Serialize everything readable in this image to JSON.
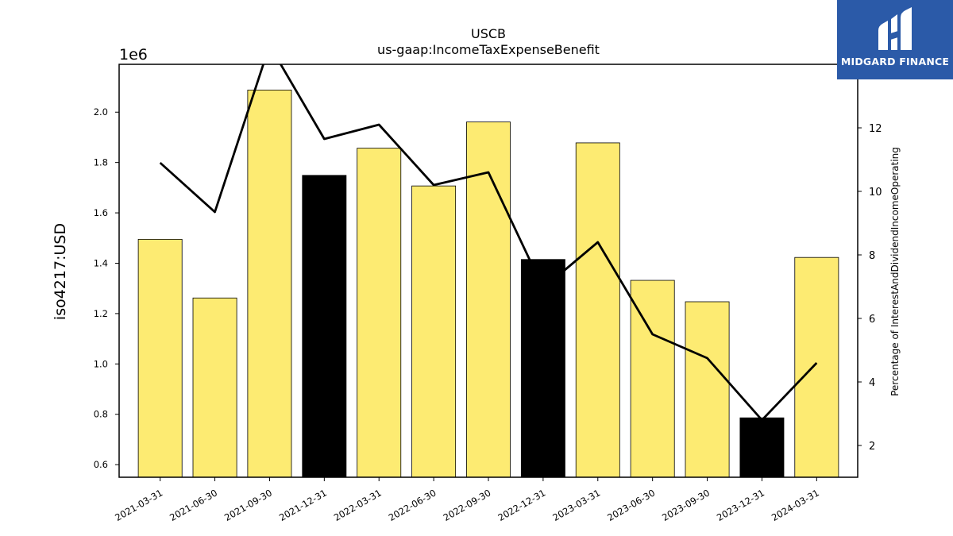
{
  "chart_data": {
    "type": "bar",
    "title": "USCB",
    "subtitle": "us-gaap:IncomeTaxExpenseBenefit",
    "ylabel": "iso4217:USD",
    "y_multiplier_label": "1e6",
    "y2label": "Percentage of InterestAndDividendIncomeOperating",
    "categories": [
      "2021-03-31",
      "2021-06-30",
      "2021-09-30",
      "2021-12-31",
      "2022-03-31",
      "2022-06-30",
      "2022-09-30",
      "2022-12-31",
      "2023-03-31",
      "2023-06-30",
      "2023-09-30",
      "2023-12-31",
      "2024-03-31"
    ],
    "series": [
      {
        "values": [
          1495000,
          1262000,
          2088000,
          1749000,
          1857000,
          1707000,
          1961000,
          1415000,
          1878000,
          1332000,
          1247000,
          786000,
          1423000
        ],
        "bar_colors": [
          "#fdeb72",
          "#fdeb72",
          "#fdeb72",
          "#000000",
          "#fdeb72",
          "#fdeb72",
          "#fdeb72",
          "#000000",
          "#fdeb72",
          "#fdeb72",
          "#fdeb72",
          "#000000",
          "#fdeb72"
        ],
        "axis": "left"
      },
      {
        "type": "line",
        "values": [
          10.9,
          9.35,
          14.6,
          11.65,
          12.1,
          10.2,
          10.6,
          6.95,
          8.4,
          5.5,
          4.75,
          2.8,
          4.6
        ],
        "color": "#000000",
        "axis": "right"
      }
    ],
    "ylim": [
      550000,
      2190000
    ],
    "yticks": [
      600000,
      800000,
      1000000,
      1200000,
      1400000,
      1600000,
      1800000,
      2000000
    ],
    "ytick_labels": [
      "0.6",
      "0.8",
      "1.0",
      "1.2",
      "1.4",
      "1.6",
      "1.8",
      "2.0"
    ],
    "y2lim": [
      1.0,
      14.0
    ],
    "y2ticks": [
      2,
      4,
      6,
      8,
      10,
      12
    ],
    "y2tick_labels": [
      "2",
      "4",
      "6",
      "8",
      "10",
      "12"
    ],
    "grid": false
  },
  "logo": {
    "text": "MIDGARD FINANCE"
  }
}
